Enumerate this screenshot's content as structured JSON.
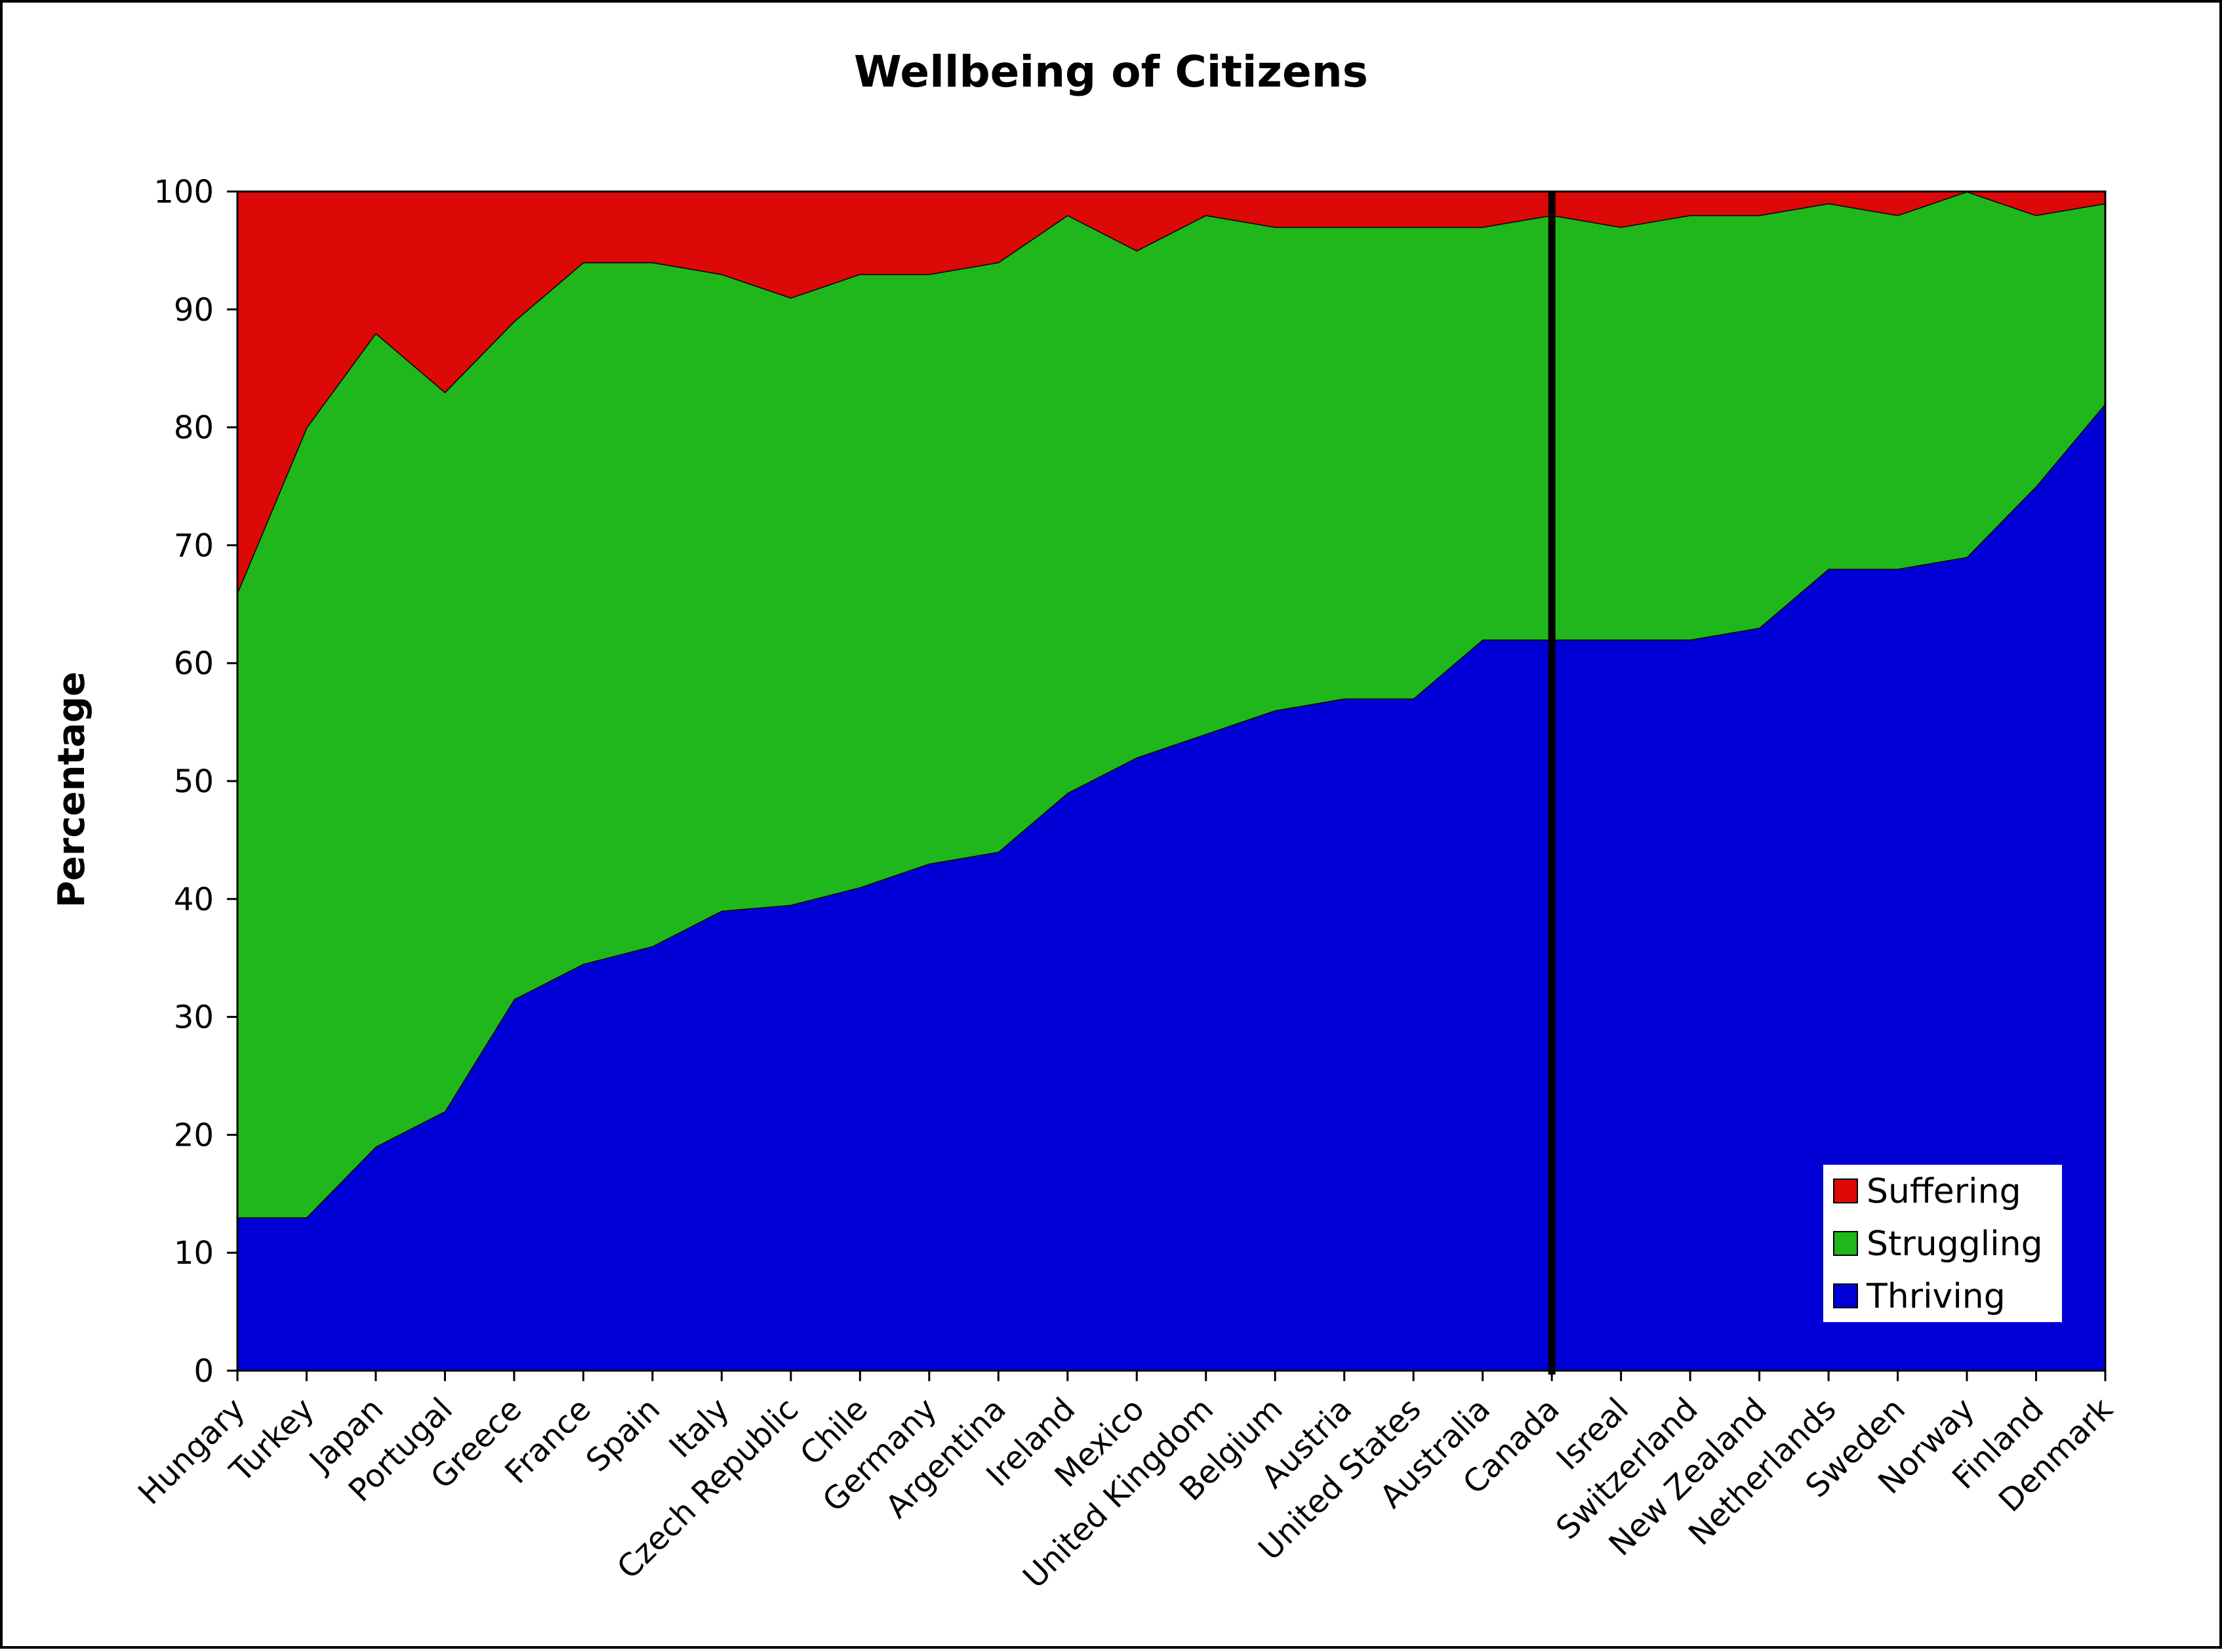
{
  "chart_data": {
    "type": "area",
    "stacked": true,
    "title": "Wellbeing of Citizens",
    "xlabel": "",
    "ylabel": "Percentage",
    "ylim": [
      0,
      100
    ],
    "yticks": [
      0,
      10,
      20,
      30,
      40,
      50,
      60,
      70,
      80,
      90,
      100
    ],
    "grid": false,
    "legend_position": "bottom-right",
    "categories": [
      "Hungary",
      "Turkey",
      "Japan",
      "Portugal",
      "Greece",
      "France",
      "Spain",
      "Italy",
      "Czech Republic",
      "Chile",
      "Germany",
      "Argentina",
      "Ireland",
      "Mexico",
      "United Kingdom",
      "Belgium",
      "Austria",
      "United States",
      "Australia",
      "Canada",
      "Isreal",
      "Switzerland",
      "New Zealand",
      "Netherlands",
      "Sweden",
      "Norway",
      "Finland",
      "Denmark"
    ],
    "series": [
      {
        "name": "Thriving",
        "color": "#0000d6",
        "values": [
          13,
          13,
          19,
          22,
          31.5,
          34.5,
          36,
          39,
          39.5,
          41,
          43,
          44,
          49,
          52,
          54,
          56,
          57,
          57,
          62,
          62,
          62,
          62,
          63,
          68,
          68,
          69,
          75,
          82
        ]
      },
      {
        "name": "Struggling",
        "color": "#1fb71b",
        "values": [
          53,
          67,
          69,
          61,
          57.5,
          59.5,
          58,
          54,
          51.5,
          52,
          50,
          50,
          49,
          43,
          44,
          41,
          40,
          40,
          35,
          36,
          35,
          36,
          35,
          31,
          30,
          31,
          23,
          17
        ]
      },
      {
        "name": "Suffering",
        "color": "#dd0808",
        "values": [
          34,
          20,
          12,
          17,
          11,
          6,
          6,
          7,
          9,
          7,
          7,
          6,
          2,
          5,
          2,
          3,
          3,
          3,
          3,
          2,
          3,
          2,
          2,
          1,
          2,
          0,
          2,
          1
        ]
      }
    ],
    "legend_order": [
      "Suffering",
      "Struggling",
      "Thriving"
    ],
    "divider_after": "Canada"
  }
}
